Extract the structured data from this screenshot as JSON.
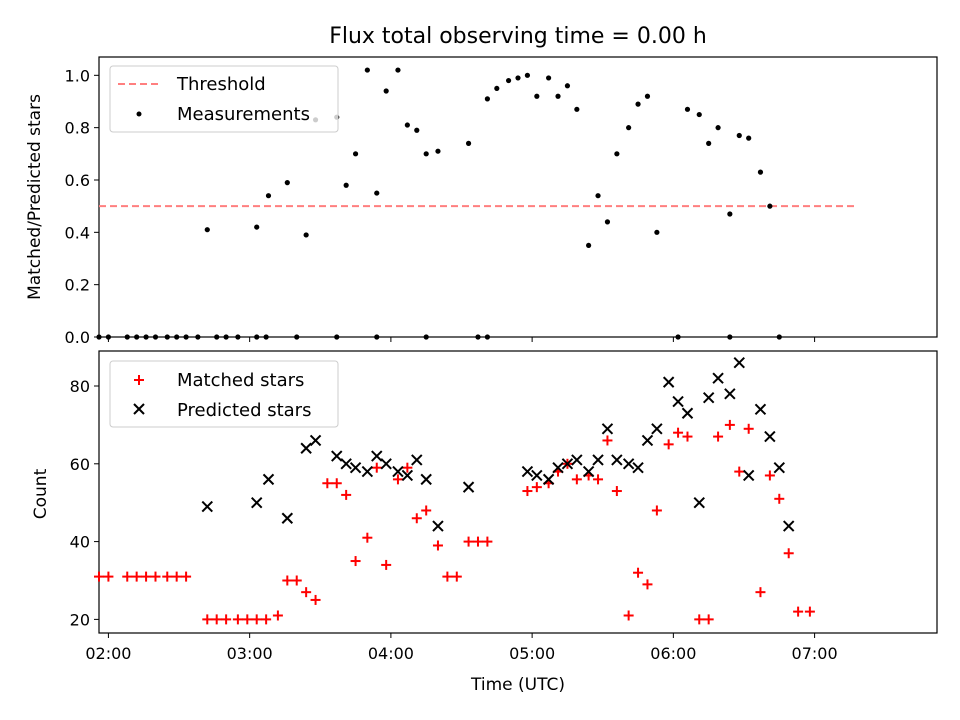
{
  "chart_data": [
    {
      "type": "scatter",
      "title": "Flux total observing time = 0.00 h",
      "xlabel": "",
      "ylabel": "Matched/Predicted stars",
      "xlim": [
        "01:56",
        "07:52"
      ],
      "ylim": [
        0,
        1.07
      ],
      "y_ticks": [
        "0.0",
        "0.2",
        "0.4",
        "0.6",
        "0.8",
        "1.0"
      ],
      "legend_position": "upper-left",
      "series": [
        {
          "name": "Threshold",
          "kind": "dashed-line",
          "color": "#ff7f7f",
          "points": [
            [
              "01:56",
              0.5
            ],
            [
              "07:17",
              0.5
            ]
          ]
        },
        {
          "name": "Measurements",
          "kind": "dots",
          "color": "#000000",
          "points": [
            [
              "01:56",
              0.0
            ],
            [
              "02:00",
              0.0
            ],
            [
              "02:08",
              0.0
            ],
            [
              "02:12",
              0.0
            ],
            [
              "02:16",
              0.0
            ],
            [
              "02:20",
              0.0
            ],
            [
              "02:25",
              0.0
            ],
            [
              "02:29",
              0.0
            ],
            [
              "02:33",
              0.0
            ],
            [
              "02:38",
              0.0
            ],
            [
              "02:46",
              0.0
            ],
            [
              "02:50",
              0.0
            ],
            [
              "02:55",
              0.0
            ],
            [
              "03:03",
              0.0
            ],
            [
              "03:07",
              0.0
            ],
            [
              "03:20",
              0.0
            ],
            [
              "03:37",
              0.0
            ],
            [
              "03:54",
              0.0
            ],
            [
              "04:15",
              0.0
            ],
            [
              "04:37",
              0.0
            ],
            [
              "04:41",
              0.0
            ],
            [
              "06:02",
              0.0
            ],
            [
              "06:24",
              0.0
            ],
            [
              "02:42",
              0.41
            ],
            [
              "03:03",
              0.42
            ],
            [
              "03:08",
              0.54
            ],
            [
              "03:16",
              0.59
            ],
            [
              "03:24",
              0.39
            ],
            [
              "03:28",
              0.83
            ],
            [
              "03:37",
              0.84
            ],
            [
              "03:41",
              0.58
            ],
            [
              "03:45",
              0.7
            ],
            [
              "03:50",
              1.02
            ],
            [
              "03:54",
              0.55
            ],
            [
              "03:58",
              0.94
            ],
            [
              "04:03",
              1.02
            ],
            [
              "04:07",
              0.81
            ],
            [
              "04:11",
              0.79
            ],
            [
              "04:15",
              0.7
            ],
            [
              "04:20",
              0.71
            ],
            [
              "04:33",
              0.74
            ],
            [
              "04:41",
              0.91
            ],
            [
              "04:45",
              0.95
            ],
            [
              "04:50",
              0.98
            ],
            [
              "04:54",
              0.99
            ],
            [
              "04:58",
              1.0
            ],
            [
              "05:02",
              0.92
            ],
            [
              "05:07",
              0.99
            ],
            [
              "05:11",
              0.92
            ],
            [
              "05:15",
              0.96
            ],
            [
              "05:19",
              0.87
            ],
            [
              "05:24",
              0.35
            ],
            [
              "05:28",
              0.54
            ],
            [
              "05:32",
              0.44
            ],
            [
              "05:36",
              0.7
            ],
            [
              "05:41",
              0.8
            ],
            [
              "05:45",
              0.89
            ],
            [
              "05:49",
              0.92
            ],
            [
              "05:53",
              0.4
            ],
            [
              "06:06",
              0.87
            ],
            [
              "06:11",
              0.85
            ],
            [
              "06:15",
              0.74
            ],
            [
              "06:19",
              0.8
            ],
            [
              "06:24",
              0.47
            ],
            [
              "06:28",
              0.77
            ],
            [
              "06:32",
              0.76
            ],
            [
              "06:37",
              0.63
            ],
            [
              "06:41",
              0.5
            ],
            [
              "06:45",
              0.0
            ]
          ]
        }
      ]
    },
    {
      "type": "scatter",
      "title": "",
      "xlabel": "Time (UTC)",
      "ylabel": "Count",
      "xlim": [
        "01:56",
        "07:52"
      ],
      "ylim": [
        16.5,
        89
      ],
      "x_ticks": [
        "02:00",
        "03:00",
        "04:00",
        "05:00",
        "06:00",
        "07:00"
      ],
      "y_ticks": [
        "20",
        "40",
        "60",
        "80"
      ],
      "legend_position": "upper-left",
      "series": [
        {
          "name": "Matched stars",
          "kind": "plus",
          "color": "#ff0000",
          "points": [
            [
              "01:56",
              31
            ],
            [
              "02:00",
              31
            ],
            [
              "02:08",
              31
            ],
            [
              "02:12",
              31
            ],
            [
              "02:16",
              31
            ],
            [
              "02:20",
              31
            ],
            [
              "02:25",
              31
            ],
            [
              "02:29",
              31
            ],
            [
              "02:33",
              31
            ],
            [
              "02:42",
              20
            ],
            [
              "02:46",
              20
            ],
            [
              "02:50",
              20
            ],
            [
              "02:55",
              20
            ],
            [
              "02:59",
              20
            ],
            [
              "03:03",
              20
            ],
            [
              "03:07",
              20
            ],
            [
              "03:12",
              21
            ],
            [
              "03:16",
              30
            ],
            [
              "03:20",
              30
            ],
            [
              "03:24",
              27
            ],
            [
              "03:28",
              25
            ],
            [
              "03:33",
              55
            ],
            [
              "03:37",
              55
            ],
            [
              "03:41",
              52
            ],
            [
              "03:45",
              35
            ],
            [
              "03:50",
              41
            ],
            [
              "03:54",
              59
            ],
            [
              "03:58",
              34
            ],
            [
              "04:03",
              56
            ],
            [
              "04:07",
              59
            ],
            [
              "04:11",
              46
            ],
            [
              "04:15",
              48
            ],
            [
              "04:20",
              39
            ],
            [
              "04:24",
              31
            ],
            [
              "04:28",
              31
            ],
            [
              "04:33",
              40
            ],
            [
              "04:37",
              40
            ],
            [
              "04:41",
              40
            ],
            [
              "04:58",
              53
            ],
            [
              "05:02",
              54
            ],
            [
              "05:07",
              55
            ],
            [
              "05:11",
              58
            ],
            [
              "05:15",
              60
            ],
            [
              "05:19",
              56
            ],
            [
              "05:24",
              57
            ],
            [
              "05:28",
              56
            ],
            [
              "05:32",
              66
            ],
            [
              "05:36",
              53
            ],
            [
              "05:41",
              21
            ],
            [
              "05:45",
              32
            ],
            [
              "05:49",
              29
            ],
            [
              "05:53",
              48
            ],
            [
              "05:58",
              65
            ],
            [
              "06:02",
              68
            ],
            [
              "06:06",
              67
            ],
            [
              "06:11",
              20
            ],
            [
              "06:15",
              20
            ],
            [
              "06:19",
              67
            ],
            [
              "06:24",
              70
            ],
            [
              "06:28",
              58
            ],
            [
              "06:32",
              69
            ],
            [
              "06:37",
              27
            ],
            [
              "06:41",
              57
            ],
            [
              "06:45",
              51
            ],
            [
              "06:49",
              37
            ],
            [
              "06:53",
              22
            ],
            [
              "06:58",
              22
            ]
          ]
        },
        {
          "name": "Predicted stars",
          "kind": "x",
          "color": "#000000",
          "points": [
            [
              "02:42",
              49
            ],
            [
              "03:03",
              50
            ],
            [
              "03:08",
              56
            ],
            [
              "03:16",
              46
            ],
            [
              "03:24",
              64
            ],
            [
              "03:28",
              66
            ],
            [
              "03:37",
              62
            ],
            [
              "03:41",
              60
            ],
            [
              "03:45",
              59
            ],
            [
              "03:50",
              58
            ],
            [
              "03:54",
              62
            ],
            [
              "03:58",
              60
            ],
            [
              "04:03",
              58
            ],
            [
              "04:07",
              57
            ],
            [
              "04:11",
              61
            ],
            [
              "04:15",
              56
            ],
            [
              "04:20",
              44
            ],
            [
              "04:33",
              54
            ],
            [
              "04:58",
              58
            ],
            [
              "05:02",
              57
            ],
            [
              "05:07",
              56
            ],
            [
              "05:11",
              59
            ],
            [
              "05:15",
              60
            ],
            [
              "05:19",
              61
            ],
            [
              "05:24",
              58
            ],
            [
              "05:28",
              61
            ],
            [
              "05:32",
              69
            ],
            [
              "05:36",
              61
            ],
            [
              "05:41",
              60
            ],
            [
              "05:45",
              59
            ],
            [
              "05:49",
              66
            ],
            [
              "05:53",
              69
            ],
            [
              "05:58",
              81
            ],
            [
              "06:02",
              76
            ],
            [
              "06:06",
              73
            ],
            [
              "06:11",
              50
            ],
            [
              "06:15",
              77
            ],
            [
              "06:19",
              82
            ],
            [
              "06:24",
              78
            ],
            [
              "06:28",
              86
            ],
            [
              "06:32",
              57
            ],
            [
              "06:37",
              74
            ],
            [
              "06:41",
              67
            ],
            [
              "06:45",
              59
            ],
            [
              "06:49",
              44
            ]
          ]
        }
      ]
    }
  ]
}
